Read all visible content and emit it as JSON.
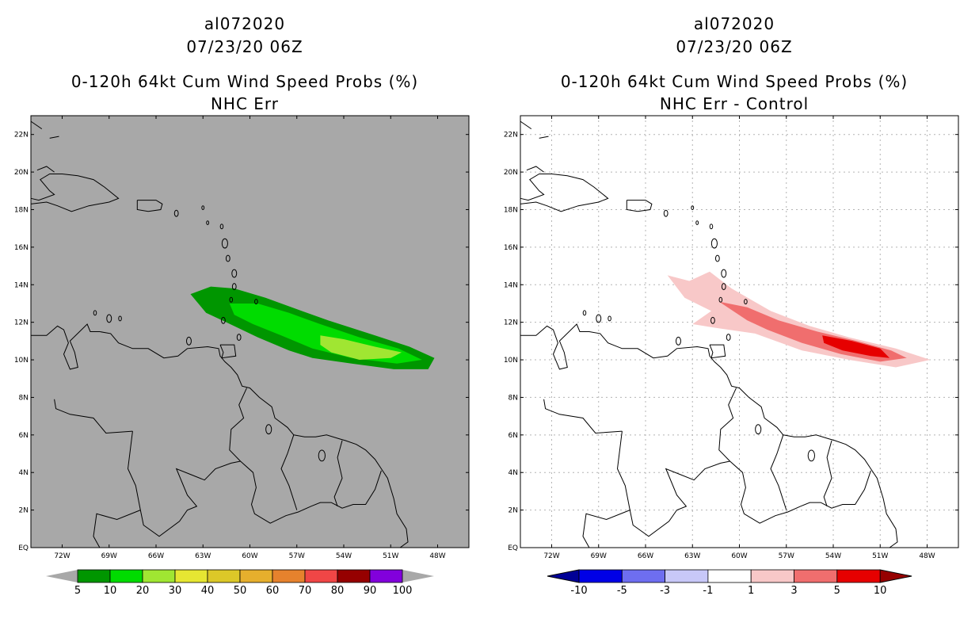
{
  "panels": [
    {
      "storm_id": "al072020",
      "datetime": "07/23/20 06Z",
      "title": "0-120h 64kt Cum Wind Speed Probs (%)",
      "subtitle": "NHC Err",
      "background": "#a8a8a8",
      "gridlines": false
    },
    {
      "storm_id": "al072020",
      "datetime": "07/23/20 06Z",
      "title": "0-120h 64kt Cum Wind Speed Probs (%)",
      "subtitle": "NHC Err - Control",
      "background": "#ffffff",
      "gridlines": true
    }
  ],
  "chart_data": [
    {
      "type": "heatmap",
      "title": "0-120h 64kt Cum Wind Speed Probs (%)",
      "subtitle": "NHC Err",
      "x_range_lon": [
        -74,
        -46
      ],
      "y_range_lat": [
        0,
        23
      ],
      "x_ticks": [
        "72W",
        "69W",
        "66W",
        "63W",
        "60W",
        "57W",
        "54W",
        "51W",
        "48W"
      ],
      "x_tick_values": [
        -72,
        -69,
        -66,
        -63,
        -60,
        -57,
        -54,
        -51,
        -48
      ],
      "y_ticks": [
        "EQ",
        "2N",
        "4N",
        "6N",
        "8N",
        "10N",
        "12N",
        "14N",
        "16N",
        "18N",
        "20N",
        "22N"
      ],
      "y_tick_values": [
        0,
        2,
        4,
        6,
        8,
        10,
        12,
        14,
        16,
        18,
        20,
        22
      ],
      "colorbar": {
        "labels": [
          "5",
          "10",
          "20",
          "30",
          "40",
          "50",
          "60",
          "70",
          "80",
          "90",
          "100"
        ],
        "colors": [
          "#009600",
          "#00dc00",
          "#a0e632",
          "#e6e632",
          "#dcc828",
          "#e6af2d",
          "#e6822d",
          "#f04646",
          "#960000",
          "#8200dc"
        ],
        "low_arrow": "#a8a8a8",
        "high_arrow": "#a8a8a8"
      },
      "contours": [
        {
          "level": "5-10",
          "color": "#009600",
          "polygon_lonlat": [
            [
              -63.8,
              13.5
            ],
            [
              -62.5,
              13.9
            ],
            [
              -61,
              13.8
            ],
            [
              -59,
              13.3
            ],
            [
              -57,
              12.7
            ],
            [
              -55,
              12.1
            ],
            [
              -52,
              11.3
            ],
            [
              -49.8,
              10.7
            ],
            [
              -48.2,
              10.1
            ],
            [
              -48.6,
              9.5
            ],
            [
              -50.8,
              9.5
            ],
            [
              -53.5,
              9.8
            ],
            [
              -56,
              10.1
            ],
            [
              -57.5,
              10.5
            ],
            [
              -59.5,
              11.2
            ],
            [
              -61.5,
              12.0
            ],
            [
              -62.8,
              12.5
            ],
            [
              -63.4,
              13.1
            ]
          ]
        },
        {
          "level": "10-20",
          "color": "#00dc00",
          "polygon_lonlat": [
            [
              -61.3,
              13.0
            ],
            [
              -59.5,
              13.0
            ],
            [
              -57.5,
              12.5
            ],
            [
              -55.5,
              11.9
            ],
            [
              -53,
              11.2
            ],
            [
              -50.5,
              10.6
            ],
            [
              -49,
              10.0
            ],
            [
              -50.6,
              9.8
            ],
            [
              -53.5,
              10.1
            ],
            [
              -56,
              10.6
            ],
            [
              -58,
              11.3
            ],
            [
              -59.8,
              11.9
            ],
            [
              -61,
              12.4
            ]
          ]
        },
        {
          "level": "20-30",
          "color": "#a0e632",
          "polygon_lonlat": [
            [
              -55.5,
              11.3
            ],
            [
              -54,
              11.1
            ],
            [
              -52,
              10.7
            ],
            [
              -50.3,
              10.4
            ],
            [
              -51,
              10.1
            ],
            [
              -53,
              10.0
            ],
            [
              -54.8,
              10.4
            ],
            [
              -55.5,
              10.8
            ]
          ]
        }
      ]
    },
    {
      "type": "heatmap",
      "title": "0-120h 64kt Cum Wind Speed Probs (%)",
      "subtitle": "NHC Err - Control",
      "x_range_lon": [
        -74,
        -46
      ],
      "y_range_lat": [
        0,
        23
      ],
      "x_ticks": [
        "72W",
        "69W",
        "66W",
        "63W",
        "60W",
        "57W",
        "54W",
        "51W",
        "48W"
      ],
      "x_tick_values": [
        -72,
        -69,
        -66,
        -63,
        -60,
        -57,
        -54,
        -51,
        -48
      ],
      "y_ticks": [
        "EQ",
        "2N",
        "4N",
        "6N",
        "8N",
        "10N",
        "12N",
        "14N",
        "16N",
        "18N",
        "20N",
        "22N"
      ],
      "y_tick_values": [
        0,
        2,
        4,
        6,
        8,
        10,
        12,
        14,
        16,
        18,
        20,
        22
      ],
      "colorbar": {
        "labels": [
          "-10",
          "-5",
          "-3",
          "-1",
          "1",
          "3",
          "5",
          "10"
        ],
        "colors": [
          "#0000e6",
          "#6e6ef0",
          "#c8c8f8",
          "#ffffff",
          "#f8c8c8",
          "#f06e6e",
          "#e60000"
        ],
        "low_arrow": "#000096",
        "high_arrow": "#960000"
      },
      "contours": [
        {
          "level": "1-3",
          "color": "#f8c8c8",
          "polygon_lonlat": [
            [
              -64.6,
              14.5
            ],
            [
              -63.2,
              14.2
            ],
            [
              -61.9,
              14.7
            ],
            [
              -60.5,
              13.8
            ],
            [
              -58,
              12.6
            ],
            [
              -55.5,
              11.8
            ],
            [
              -53,
              11.2
            ],
            [
              -50,
              10.6
            ],
            [
              -47.8,
              10.0
            ],
            [
              -50,
              9.6
            ],
            [
              -53,
              10.0
            ],
            [
              -56,
              10.5
            ],
            [
              -59,
              11.4
            ],
            [
              -61.5,
              11.7
            ],
            [
              -63,
              11.9
            ],
            [
              -61.8,
              12.6
            ],
            [
              -63.5,
              13.3
            ]
          ]
        },
        {
          "level": "3-5",
          "color": "#f06e6e",
          "polygon_lonlat": [
            [
              -61.3,
              13.1
            ],
            [
              -59.5,
              12.8
            ],
            [
              -57.5,
              12.1
            ],
            [
              -55,
              11.5
            ],
            [
              -52.5,
              11.0
            ],
            [
              -50.3,
              10.5
            ],
            [
              -49.3,
              10.1
            ],
            [
              -51,
              9.9
            ],
            [
              -53.5,
              10.3
            ],
            [
              -56,
              10.9
            ],
            [
              -58.2,
              11.6
            ],
            [
              -59.5,
              12.1
            ]
          ]
        },
        {
          "level": "5-10",
          "color": "#e60000",
          "polygon_lonlat": [
            [
              -54.7,
              11.3
            ],
            [
              -52.8,
              11.0
            ],
            [
              -51,
              10.6
            ],
            [
              -50.4,
              10.1
            ],
            [
              -51.6,
              10.2
            ],
            [
              -53.4,
              10.5
            ],
            [
              -54.6,
              10.9
            ]
          ]
        }
      ]
    }
  ]
}
